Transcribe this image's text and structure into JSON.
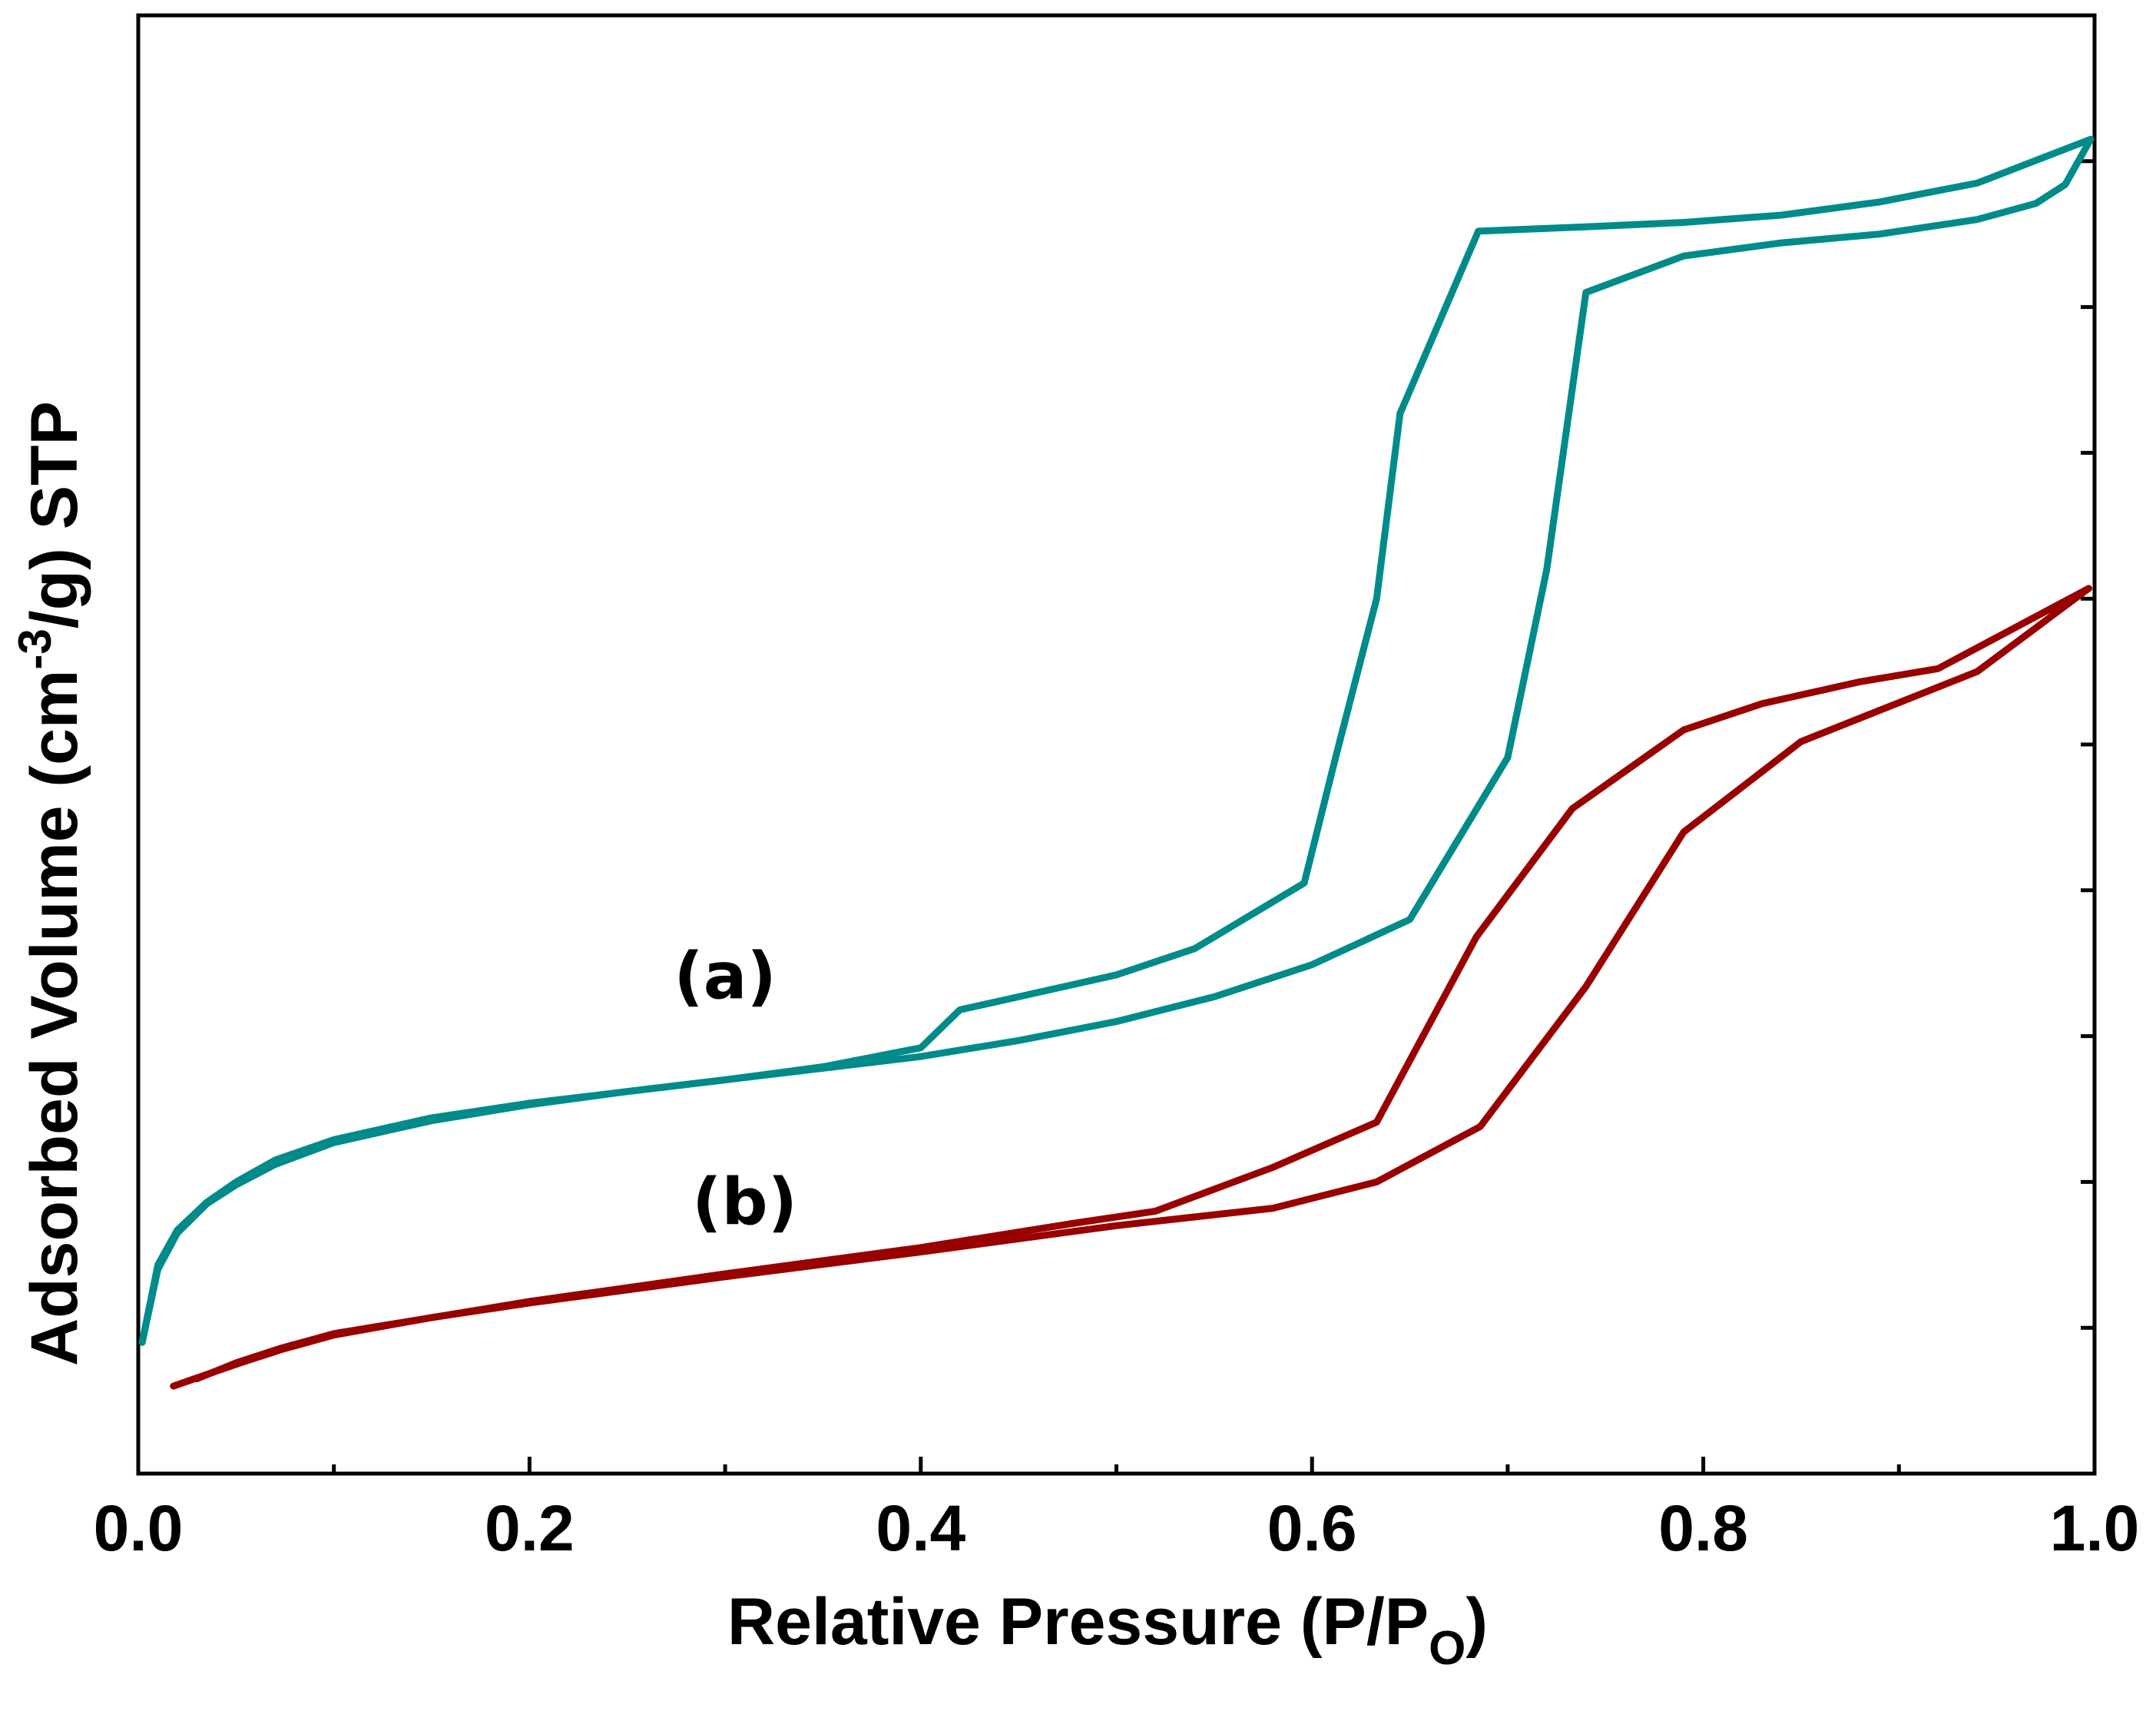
{
  "chart_data": {
    "type": "line",
    "title": "",
    "xlabel": {
      "main": "Relative Pressure (P/P",
      "sub": "O",
      "close": ")"
    },
    "ylabel": {
      "main": "Adsorbed Volume (cm",
      "sup": "-3",
      "rest": "/g) STP"
    },
    "xlim": [
      0.0,
      1.0
    ],
    "ylim": [
      0,
      10
    ],
    "xticks": [
      0.0,
      0.2,
      0.4,
      0.6,
      0.8,
      1.0
    ],
    "xtick_labels": [
      "0.0",
      "0.2",
      "0.4",
      "0.6",
      "0.8",
      "1.0"
    ],
    "yticks": [
      1,
      2,
      3,
      4,
      5,
      6,
      7,
      8,
      9
    ],
    "ytick_labels_shown": false,
    "grid": false,
    "series": [
      {
        "name": "(a)",
        "color": "#008B8B",
        "adsorption": {
          "x": [
            0.002,
            0.01,
            0.02,
            0.035,
            0.05,
            0.07,
            0.1,
            0.15,
            0.2,
            0.25,
            0.3,
            0.35,
            0.4,
            0.45,
            0.5,
            0.55,
            0.6,
            0.65,
            0.7,
            0.72,
            0.74,
            0.79,
            0.84,
            0.89,
            0.94,
            0.97,
            0.985,
            0.998
          ],
          "y": [
            0.9,
            1.4,
            1.65,
            1.85,
            1.98,
            2.12,
            2.27,
            2.42,
            2.53,
            2.62,
            2.7,
            2.78,
            2.86,
            2.97,
            3.1,
            3.27,
            3.49,
            3.8,
            4.91,
            6.2,
            8.1,
            8.35,
            8.44,
            8.5,
            8.6,
            8.71,
            8.84,
            9.15
          ]
        },
        "desorption": {
          "x": [
            0.998,
            0.94,
            0.89,
            0.84,
            0.79,
            0.74,
            0.685,
            0.645,
            0.633,
            0.612,
            0.596,
            0.54,
            0.5,
            0.45,
            0.42,
            0.4,
            0.35,
            0.3,
            0.25,
            0.2,
            0.15,
            0.1,
            0.07,
            0.05,
            0.035,
            0.02,
            0.01,
            0.002
          ],
          "y": [
            9.15,
            8.85,
            8.72,
            8.63,
            8.58,
            8.55,
            8.52,
            7.27,
            6.0,
            4.91,
            4.05,
            3.6,
            3.42,
            3.27,
            3.18,
            2.92,
            2.79,
            2.7,
            2.62,
            2.54,
            2.44,
            2.29,
            2.15,
            2.0,
            1.86,
            1.67,
            1.43,
            0.9
          ]
        }
      },
      {
        "name": "(b)",
        "color": "#990000",
        "adsorption": {
          "x": [
            0.018,
            0.05,
            0.073,
            0.1,
            0.15,
            0.2,
            0.3,
            0.4,
            0.5,
            0.58,
            0.633,
            0.686,
            0.74,
            0.79,
            0.85,
            0.94,
            0.997
          ],
          "y": [
            0.6,
            0.75,
            0.85,
            0.95,
            1.07,
            1.17,
            1.35,
            1.52,
            1.7,
            1.82,
            2.0,
            2.38,
            3.34,
            4.4,
            5.02,
            5.5,
            6.07
          ]
        },
        "desorption": {
          "x": [
            0.997,
            0.92,
            0.88,
            0.83,
            0.79,
            0.733,
            0.684,
            0.633,
            0.58,
            0.52,
            0.48,
            0.4,
            0.3,
            0.2,
            0.1,
            0.073,
            0.05,
            0.03
          ],
          "y": [
            6.07,
            5.52,
            5.43,
            5.28,
            5.1,
            4.56,
            3.68,
            2.41,
            2.1,
            1.8,
            1.72,
            1.55,
            1.37,
            1.18,
            0.96,
            0.86,
            0.76,
            0.65
          ]
        }
      }
    ],
    "annotations": [
      {
        "text": "(a)",
        "x": 0.3,
        "y": 3.26
      },
      {
        "text": "(b)",
        "x": 0.31,
        "y": 1.71
      }
    ]
  }
}
